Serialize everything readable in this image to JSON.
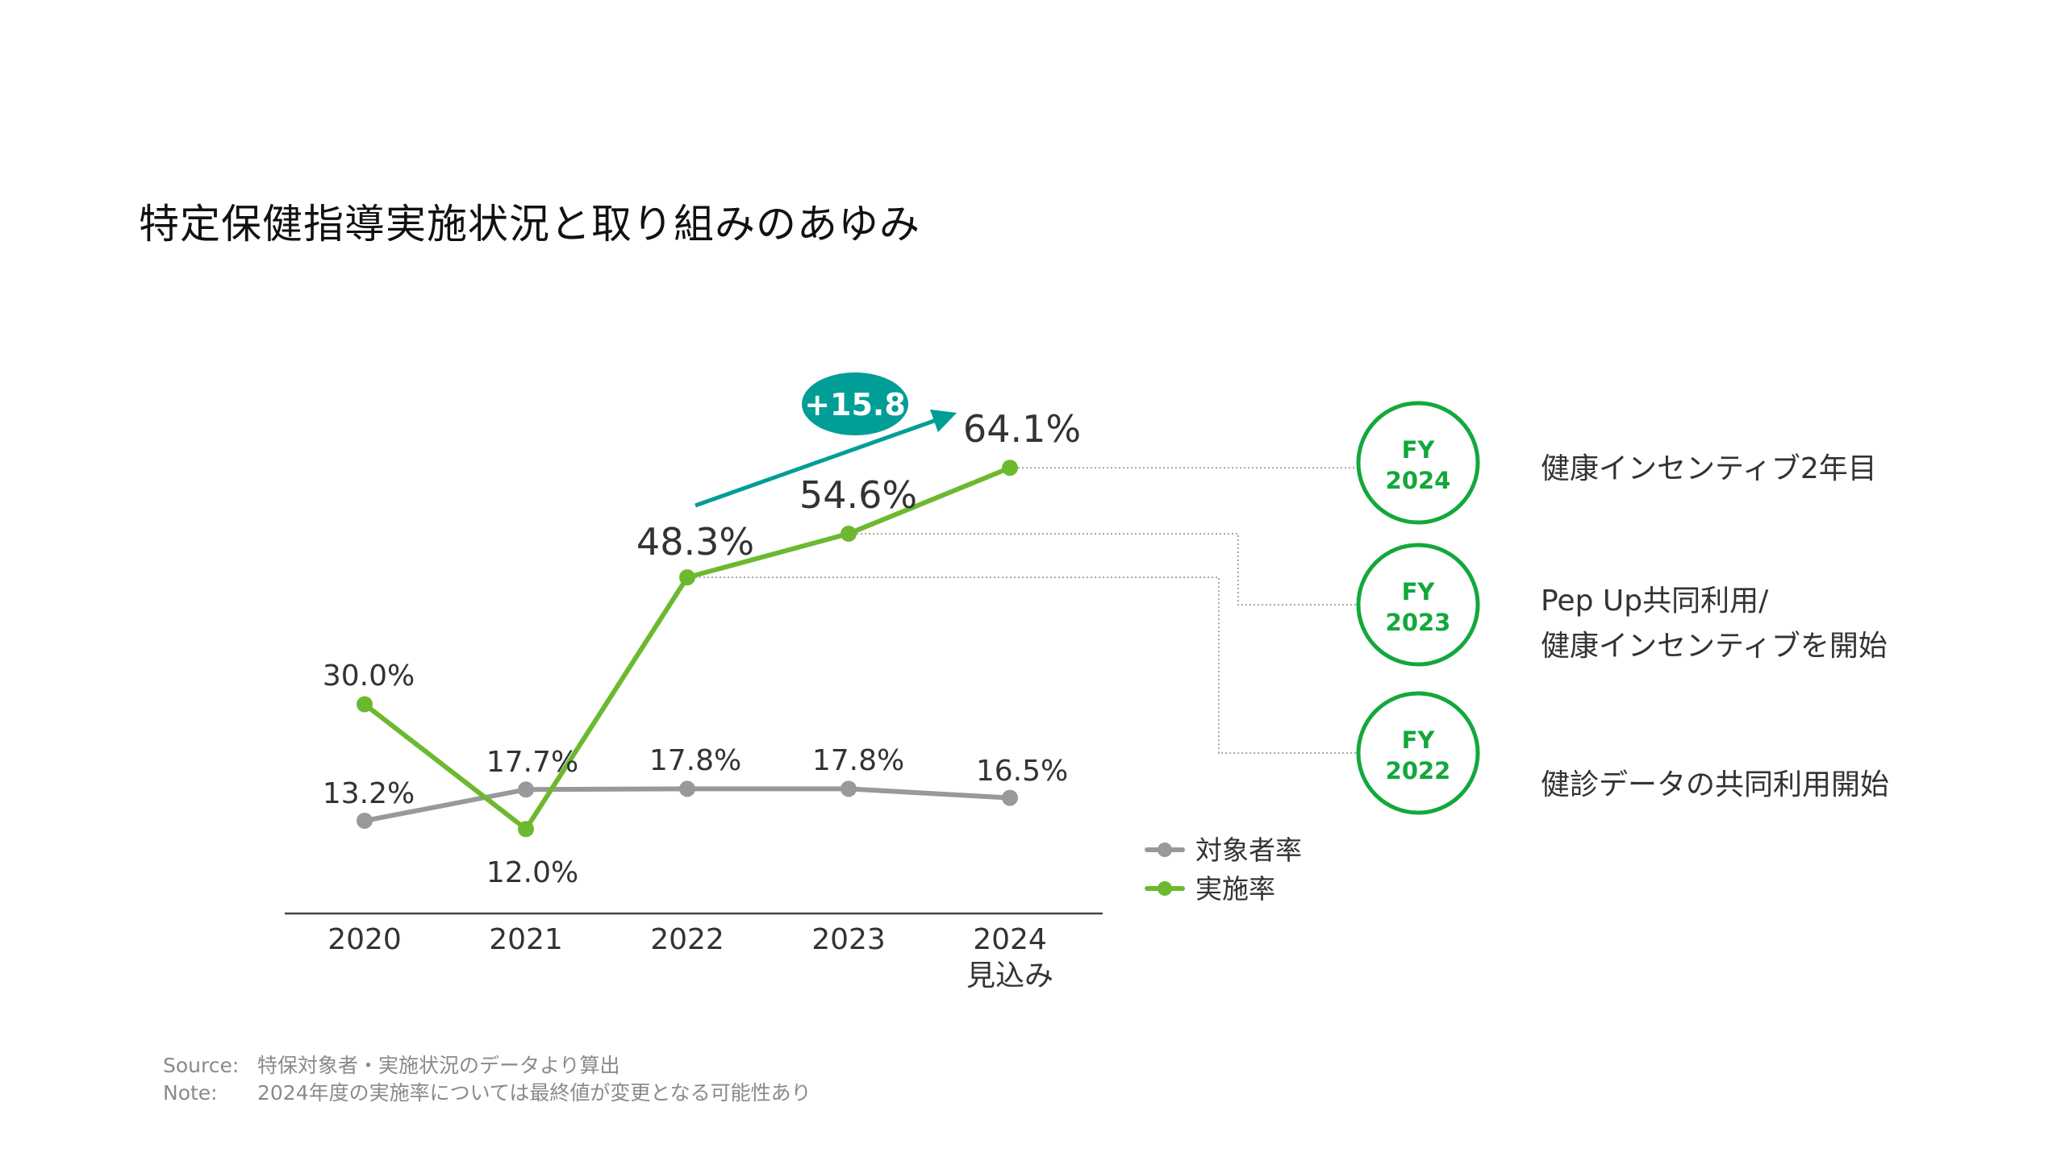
{
  "title": "特定保健指導実施状況と取り組みのあゆみ",
  "chart_data": {
    "type": "line",
    "title": "特定保健指導実施状況と取り組みのあゆみ",
    "categories": [
      "2020",
      "2021",
      "2022",
      "2023",
      "2024"
    ],
    "category_sublabels": [
      "",
      "",
      "",
      "",
      "見込み"
    ],
    "xlabel": "",
    "ylabel": "",
    "ylim": [
      0,
      70
    ],
    "grid": false,
    "legend_position": "right",
    "series": [
      {
        "name": "対象者率",
        "color": "#999999",
        "values": [
          13.2,
          17.7,
          17.8,
          17.8,
          16.5
        ],
        "labels": [
          "13.2%",
          "17.7%",
          "17.8%",
          "17.8%",
          "16.5%"
        ]
      },
      {
        "name": "実施率",
        "color": "#6cb92f",
        "values": [
          30.0,
          12.0,
          48.3,
          54.6,
          64.1
        ],
        "labels": [
          "30.0%",
          "12.0%",
          "48.3%",
          "54.6%",
          "64.1%"
        ]
      }
    ],
    "annotations": [
      {
        "type": "arrow-badge",
        "text": "+15.8",
        "from_category": "2022",
        "to_category": "2024",
        "color": "#009e96"
      }
    ]
  },
  "milestones": [
    {
      "fy_label": "FY",
      "year": "2024",
      "lines": [
        "健康インセンティブ2年目"
      ],
      "linked_category": "2024"
    },
    {
      "fy_label": "FY",
      "year": "2023",
      "lines": [
        "Pep Up共同利用/",
        "健康インセンティブを開始"
      ],
      "linked_category": "2023"
    },
    {
      "fy_label": "FY",
      "year": "2022",
      "lines": [
        "健診データの共同利用開始"
      ],
      "linked_category": "2022"
    }
  ],
  "colors": {
    "milestone_ring": "#12a83c",
    "axis": "#444444",
    "connector": "#a6a6a6",
    "text": "#333333"
  },
  "footnotes": [
    {
      "key": "Source:",
      "text": "特保対象者・実施状況のデータより算出"
    },
    {
      "key": "Note:",
      "text": "2024年度の実施率については最終値が変更となる可能性あり"
    }
  ]
}
